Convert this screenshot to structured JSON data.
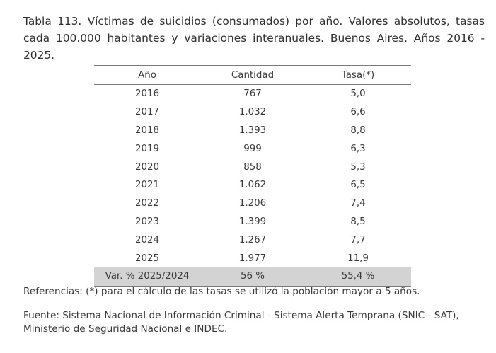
{
  "title": "Tabla 113. Víctimas de suicidios (consumados) por año. Valores absolutos, tasas cada 100.000 habitantes y variaciones interanuales. Buenos Aires. Años 2016 - 2025.",
  "table": {
    "headers": [
      "Año",
      "Cantidad",
      "Tasa(*)"
    ],
    "rows": [
      [
        "2016",
        "767",
        "5,0"
      ],
      [
        "2017",
        "1.032",
        "6,6"
      ],
      [
        "2018",
        "1.393",
        "8,8"
      ],
      [
        "2019",
        "999",
        "6,3"
      ],
      [
        "2020",
        "858",
        "5,3"
      ],
      [
        "2021",
        "1.062",
        "6,5"
      ],
      [
        "2022",
        "1.206",
        "7,4"
      ],
      [
        "2023",
        "1.399",
        "8,5"
      ],
      [
        "2024",
        "1.267",
        "7,7"
      ],
      [
        "2025",
        "1.977",
        "11,9"
      ]
    ],
    "variation": [
      "Var. % 2025/2024",
      "56 %",
      "55,4 %"
    ],
    "highlight_color": "#d3d3d3"
  },
  "note": "Referencias: (*) para el cálculo de las tasas se utilizó la población mayor a 5 años.",
  "source": "Fuente: Sistema Nacional de Información Criminal - Sistema Alerta Temprana (SNIC - SAT), Ministerio de Seguridad Nacional e INDEC."
}
